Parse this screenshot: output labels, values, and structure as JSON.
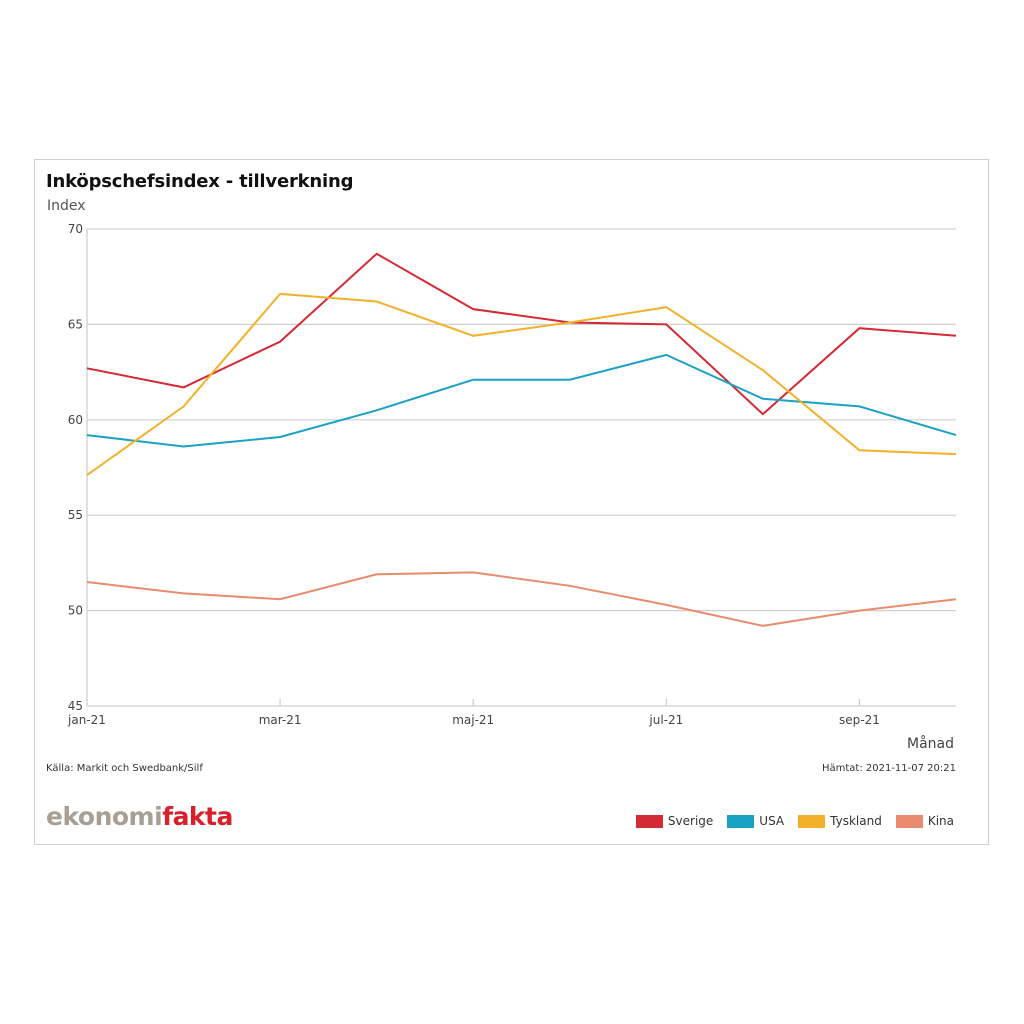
{
  "chart_data": {
    "type": "line",
    "title": "Inköpschefsindex - tillverkning",
    "ylabel": "Index",
    "xlabel": "Månad",
    "ylim": [
      45,
      70
    ],
    "yticks": [
      45,
      50,
      55,
      60,
      65,
      70
    ],
    "grid": true,
    "x": [
      "jan-21",
      "feb-21",
      "mar-21",
      "apr-21",
      "maj-21",
      "jun-21",
      "jul-21",
      "aug-21",
      "sep-21",
      "okt-21"
    ],
    "xtick_labels": [
      "jan-21",
      "mar-21",
      "maj-21",
      "jul-21",
      "sep-21"
    ],
    "legend_position": "bottom-right",
    "series": [
      {
        "name": "Sverige",
        "color": "#d42a35",
        "values": [
          62.7,
          61.7,
          64.1,
          68.7,
          65.8,
          65.1,
          65.0,
          60.3,
          64.8,
          64.4
        ]
      },
      {
        "name": "USA",
        "color": "#1aa2c4",
        "values": [
          59.2,
          58.6,
          59.1,
          60.5,
          62.1,
          62.1,
          63.4,
          61.1,
          60.7,
          59.2
        ]
      },
      {
        "name": "Tyskland",
        "color": "#f2b12a",
        "values": [
          57.1,
          60.7,
          66.6,
          66.2,
          64.4,
          65.1,
          65.9,
          62.6,
          58.4,
          58.2
        ]
      },
      {
        "name": "Kina",
        "color": "#e98b6e",
        "values": [
          51.5,
          50.9,
          50.6,
          51.9,
          52.0,
          51.3,
          50.3,
          49.2,
          50.0,
          50.6
        ]
      }
    ]
  },
  "footer": {
    "source": "Källa: Markit och Swedbank/Silf",
    "fetched": "Hämtat: 2021-11-07 20:21",
    "logo_part1": "ekonomi",
    "logo_part2": "fakta"
  }
}
